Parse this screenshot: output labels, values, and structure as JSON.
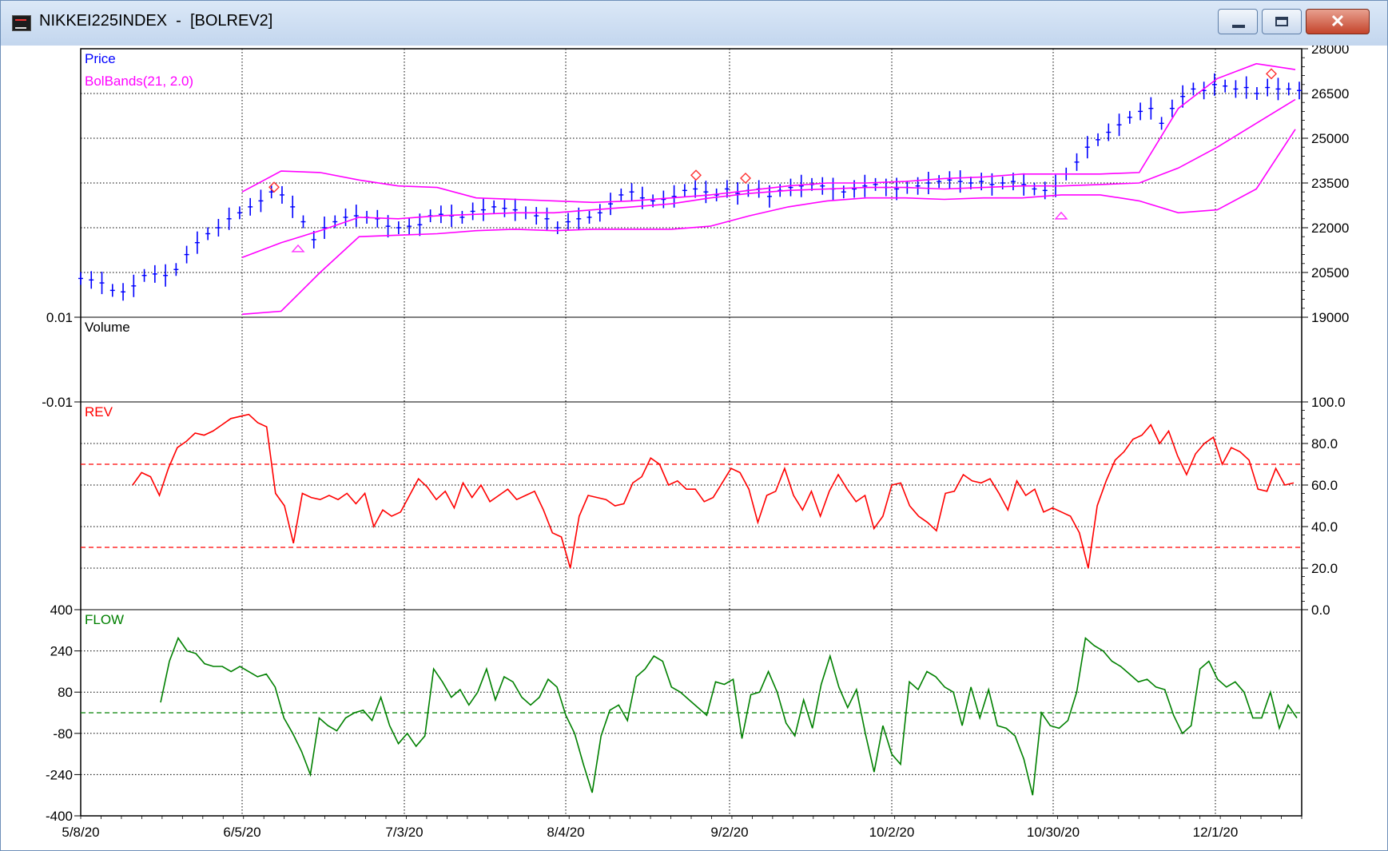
{
  "window": {
    "title": "NIKKEI225INDEX  -  [BOLREV2]",
    "icon": "chart-app-icon",
    "controls": [
      "minimize-icon",
      "maximize-icon",
      "close-icon"
    ]
  },
  "chart_data": {
    "type": "line",
    "x_ticks": [
      "5/8/20",
      "6/5/20",
      "7/3/20",
      "8/4/20",
      "9/2/20",
      "10/2/20",
      "10/30/20",
      "12/1/20"
    ],
    "panels": [
      {
        "id": "price",
        "legend": [
          "Price",
          "BolBands(21, 2.0)"
        ],
        "legend_colors": [
          "#0000ff",
          "#ff00ff"
        ],
        "y_ticks": [
          "28000",
          "26500",
          "25000",
          "23500",
          "22000",
          "20500",
          "19000"
        ],
        "ylim": [
          19000,
          28000
        ],
        "series": [
          {
            "name": "Price",
            "style": "hlc-bars",
            "color": "#0000ff",
            "values": [
              20300,
              20250,
              20150,
              19900,
              19850,
              20050,
              20400,
              20450,
              20400,
              20600,
              21100,
              21500,
              21800,
              22000,
              22300,
              22500,
              22700,
              22900,
              23200,
              23100,
              22700,
              22200,
              21600,
              22000,
              22200,
              22350,
              22400,
              22350,
              22300,
              22050,
              22000,
              22050,
              22100,
              22400,
              22450,
              22400,
              22350,
              22550,
              22600,
              22700,
              22650,
              22600,
              22500,
              22400,
              22300,
              22000,
              22200,
              22300,
              22350,
              22500,
              22800,
              23100,
              23200,
              23000,
              22900,
              22950,
              23050,
              23250,
              23300,
              23200,
              23100,
              23300,
              23150,
              23250,
              23300,
              23050,
              23250,
              23350,
              23400,
              23450,
              23400,
              23300,
              23200,
              23300,
              23400,
              23450,
              23350,
              23300,
              23350,
              23400,
              23500,
              23550,
              23600,
              23550,
              23500,
              23550,
              23450,
              23500,
              23550,
              23450,
              23300,
              23250,
              23400,
              23800,
              24200,
              24700,
              24950,
              25200,
              25450,
              25700,
              25900,
              26000,
              25500,
              26000,
              26400,
              26650,
              26600,
              26800,
              26750,
              26650,
              26700,
              26500,
              26700,
              26650,
              26650,
              26600
            ]
          },
          {
            "name": "BolBands Upper",
            "style": "line",
            "color": "#ff00ff",
            "values": [
              23200,
              23900,
              23850,
              23600,
              23400,
              23350,
              23000,
              22950,
              22900,
              22850,
              22900,
              23000,
              23100,
              23250,
              23400,
              23500,
              23500,
              23550,
              23650,
              23700,
              23800,
              23800,
              23800,
              23850,
              26000,
              27000,
              27500,
              27300
            ]
          },
          {
            "name": "BolBands Middle",
            "style": "line",
            "color": "#ff00ff",
            "values": [
              21000,
              21500,
              21900,
              22350,
              22300,
              22400,
              22450,
              22500,
              22500,
              22600,
              22700,
              22800,
              23000,
              23150,
              23250,
              23300,
              23350,
              23350,
              23300,
              23350,
              23400,
              23400,
              23450,
              23500,
              24000,
              24700,
              25500,
              26300
            ]
          },
          {
            "name": "BolBands Lower",
            "style": "line",
            "color": "#ff00ff",
            "values": [
              19100,
              19200,
              20500,
              21700,
              21750,
              21800,
              21900,
              21950,
              21900,
              21950,
              21950,
              21950,
              22050,
              22400,
              22700,
              22900,
              23000,
              23000,
              22950,
              23000,
              23000,
              23100,
              23100,
              22900,
              22500,
              22600,
              23300,
              25300
            ]
          }
        ],
        "signals": {
          "sell_diamonds": [
            {
              "x": "6/13/20",
              "y": 23200
            },
            {
              "x": "8/26/20",
              "y": 23600
            },
            {
              "x": "9/4/20",
              "y": 23500
            },
            {
              "x": "12/10/20",
              "y": 27000
            }
          ],
          "buy_triangles": [
            {
              "x": "6/17/20",
              "y": 21600
            },
            {
              "x": "11/2/20",
              "y": 22700
            }
          ]
        }
      },
      {
        "id": "volume",
        "legend": [
          "Volume"
        ],
        "legend_colors": [
          "#000000"
        ],
        "y_ticks": [
          "0.01",
          "-0.01"
        ],
        "ylim": [
          -0.01,
          0.01
        ]
      },
      {
        "id": "rev",
        "legend": [
          "REV"
        ],
        "legend_colors": [
          "#ff0000"
        ],
        "y_ticks": [
          "100.0",
          "80.0",
          "60.0",
          "40.0",
          "20.0",
          "0.0"
        ],
        "ylim": [
          0,
          100
        ],
        "reference_lines": [
          70,
          30
        ],
        "series": [
          {
            "name": "REV",
            "color": "#ff0000",
            "values": [
              60,
              66,
              64,
              55,
              68,
              78,
              81,
              85,
              84,
              86,
              89,
              92,
              93,
              94,
              90,
              88,
              56,
              50,
              32,
              56,
              54,
              53,
              55,
              53,
              56,
              51,
              56,
              40,
              48,
              45,
              47,
              55,
              63,
              59,
              53,
              57,
              49,
              61,
              54,
              60,
              52,
              55,
              58,
              53,
              55,
              57,
              48,
              37,
              35,
              20,
              45,
              55,
              54,
              53,
              50,
              51,
              61,
              64,
              73,
              70,
              60,
              62,
              58,
              58,
              52,
              54,
              61,
              68,
              66,
              58,
              42,
              55,
              57,
              68,
              55,
              48,
              57,
              45,
              57,
              65,
              58,
              52,
              55,
              39,
              45,
              60,
              61,
              50,
              45,
              42,
              38,
              56,
              57,
              65,
              62,
              61,
              63,
              56,
              48,
              62,
              55,
              58,
              47,
              49,
              47,
              45,
              37,
              20,
              50,
              62,
              72,
              76,
              82,
              84,
              89,
              80,
              86,
              74,
              65,
              75,
              80,
              83,
              70,
              78,
              76,
              72,
              58,
              57,
              68,
              60,
              61
            ]
          }
        ]
      },
      {
        "id": "flow",
        "legend": [
          "FLOW"
        ],
        "legend_colors": [
          "#008000"
        ],
        "y_ticks": [
          "400",
          "240",
          "80",
          "-80",
          "-240",
          "-400"
        ],
        "ylim": [
          -400,
          400
        ],
        "reference_lines": [
          0
        ],
        "series": [
          {
            "name": "FLOW",
            "color": "#008000",
            "values": [
              40,
              200,
              290,
              240,
              230,
              190,
              180,
              180,
              160,
              180,
              160,
              140,
              150,
              100,
              -20,
              -80,
              -150,
              -240,
              -20,
              -50,
              -70,
              -20,
              0,
              10,
              -30,
              60,
              -50,
              -120,
              -80,
              -130,
              -90,
              170,
              120,
              60,
              90,
              30,
              80,
              170,
              50,
              140,
              120,
              60,
              30,
              60,
              130,
              100,
              -10,
              -80,
              -200,
              -310,
              -90,
              10,
              30,
              -30,
              140,
              170,
              220,
              200,
              100,
              80,
              50,
              20,
              -10,
              120,
              110,
              130,
              -100,
              70,
              80,
              160,
              80,
              -40,
              -90,
              50,
              -60,
              110,
              220,
              100,
              20,
              90,
              -80,
              -230,
              -50,
              -160,
              -200,
              120,
              90,
              160,
              140,
              100,
              80,
              -50,
              100,
              -20,
              90,
              -50,
              -60,
              -90,
              -180,
              -320,
              0,
              -50,
              -60,
              -30,
              80,
              290,
              260,
              240,
              200,
              180,
              150,
              120,
              130,
              100,
              90,
              -10,
              -80,
              -50,
              170,
              200,
              130,
              100,
              120,
              80,
              -20,
              -20,
              80,
              -60,
              30,
              -20
            ]
          }
        ]
      }
    ]
  }
}
